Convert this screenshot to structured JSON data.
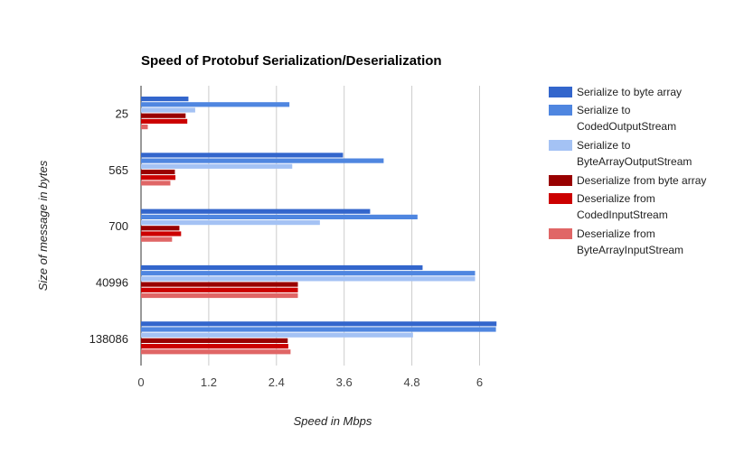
{
  "chart_data": {
    "type": "bar",
    "orientation": "horizontal",
    "title": "Speed of Protobuf Serialization/Deserialization",
    "xlabel": "Speed in Mbps",
    "ylabel": "Size of message in bytes",
    "xlim": [
      0,
      6.6
    ],
    "xticks": [
      "0",
      "1.2",
      "2.4",
      "3.6",
      "4.8",
      "6"
    ],
    "grid": true,
    "legend_position": "right",
    "categories": [
      "25",
      "565",
      "700",
      "40996",
      "138086"
    ],
    "series": [
      {
        "name": "Serialize to byte array",
        "color": "#3366cc",
        "values": [
          0.84,
          3.58,
          4.06,
          4.99,
          6.3
        ]
      },
      {
        "name": "Serialize to CodedOutputStream",
        "color": "#4f86e0",
        "values": [
          2.63,
          4.3,
          4.9,
          5.92,
          6.29
        ]
      },
      {
        "name": "Serialize to ByteArrayOutputStream",
        "color": "#a4c2f4",
        "values": [
          0.96,
          2.68,
          3.17,
          5.92,
          4.82
        ]
      },
      {
        "name": "Deserialize from byte array",
        "color": "#990000",
        "values": [
          0.79,
          0.6,
          0.68,
          2.78,
          2.6
        ]
      },
      {
        "name": "Deserialize from CodedInputStream",
        "color": "#cc0000",
        "values": [
          0.82,
          0.61,
          0.71,
          2.78,
          2.61
        ]
      },
      {
        "name": "Deserialize from ByteArrayInputStream",
        "color": "#e06666",
        "values": [
          0.12,
          0.52,
          0.55,
          2.78,
          2.65
        ]
      }
    ]
  },
  "legend": {
    "entries": [
      [
        "Serialize to byte array"
      ],
      [
        "Serialize to",
        "CodedOutputStream"
      ],
      [
        "Serialize to",
        "ByteArrayOutputStream"
      ],
      [
        "Deserialize from byte array"
      ],
      [
        "Deserialize from",
        "CodedInputStream"
      ],
      [
        "Deserialize from",
        "ByteArrayInputStream"
      ]
    ]
  }
}
